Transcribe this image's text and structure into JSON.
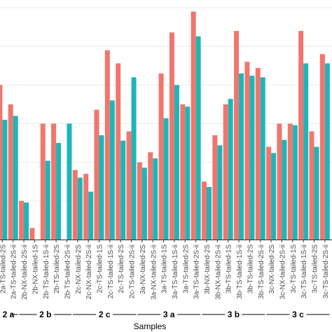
{
  "chart_data": {
    "type": "bar",
    "xlabel": "Samples",
    "ylabel": "",
    "ylim": [
      0,
      310
    ],
    "grid": true,
    "colors": {
      "series_a": "#f0766d",
      "series_b": "#1fb5b8",
      "grid": "#ebebeb",
      "axis": "#333333"
    },
    "categories": [
      "2a-TS-tailed-1S-ii",
      "2a-TS-tailed-2S",
      "2a-TS-tailed-2S-ii",
      "2b-NX-tailed-2S-ii",
      "2b-NX-tailed-1S",
      "2b-TS-tailed-1S-ii",
      "2b-TS-tailed-2S",
      "2b-TS-tailed-2S-ii",
      "2c-NX-tailed-2S",
      "2c-NX-tailed-2S-ii",
      "2c-TS-tailed-1S",
      "2c-TS-tailed-1S-ii",
      "2c-TS-tailed-2S",
      "2c-TS-tailed-2S-ii",
      "3a-NX-tailed-2S",
      "3a-NX-tailed-2S-ii",
      "3a-TS-tailed-1S",
      "3a-TS-tailed-1S-ii",
      "3a-TS-tailed-2S",
      "3a-TS-tailed-2S-ii",
      "3b-NX-tailed-2S",
      "3b-NX-tailed-2S-ii",
      "3b-TS-tailed-1S",
      "3b-TS-tailed-1S-ii",
      "3b-TS-tailed-2S",
      "3b-TS-tailed-2S-ii",
      "3c-NX-tailed-2S",
      "3c-NX-tailed-2S-ii",
      "3c-TS-tailed-1S",
      "3c-TS-tailed-1S-ii",
      "3c-TS-tailed-2S",
      "3c-TS-tailed-2S-ii"
    ],
    "series": [
      {
        "values": [
          180,
          200,
          175,
          50,
          15,
          150,
          150,
          0,
          90,
          85,
          168,
          245,
          228,
          140,
          100,
          113,
          215,
          268,
          175,
          295,
          75,
          135,
          175,
          270,
          230,
          222,
          120,
          150,
          150,
          270,
          140,
          240
        ]
      },
      {
        "values": [
          155,
          155,
          160,
          48,
          0,
          102,
          125,
          150,
          80,
          62,
          135,
          180,
          128,
          210,
          93,
          105,
          157,
          200,
          172,
          263,
          68,
          122,
          182,
          215,
          212,
          210,
          112,
          129,
          148,
          228,
          120,
          228
        ]
      }
    ],
    "groups": [
      {
        "label": "2 a",
        "count": 3
      },
      {
        "label": "2 b",
        "count": 5
      },
      {
        "label": "2 c",
        "count": 6
      },
      {
        "label": "3 a",
        "count": 6
      },
      {
        "label": "3 b",
        "count": 6
      },
      {
        "label": "3 c",
        "count": 6
      }
    ]
  }
}
